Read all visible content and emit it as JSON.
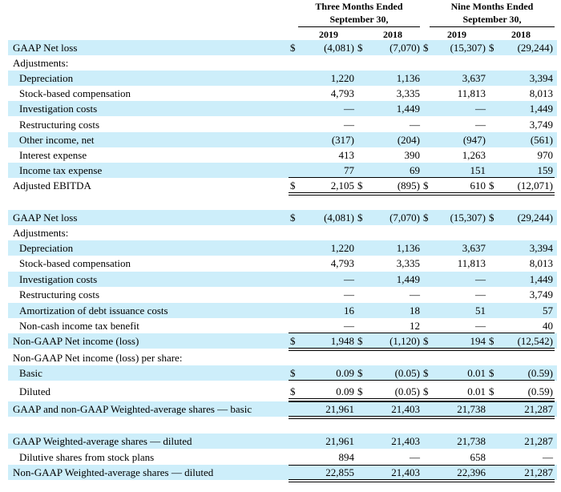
{
  "header": {
    "three_months": [
      "Three Months Ended",
      "September 30,"
    ],
    "nine_months": [
      "Nine Months Ended",
      "September 30,"
    ],
    "years": [
      "2019",
      "2018",
      "2019",
      "2018"
    ]
  },
  "rows": [
    {
      "label": "GAAP Net loss",
      "values": [
        "(4,081)",
        "(7,070)",
        "(15,307)",
        "(29,244)"
      ],
      "dollar": true
    },
    {
      "label": "Adjustments:",
      "values": [
        "",
        "",
        "",
        ""
      ]
    },
    {
      "label": "Depreciation",
      "indent": true,
      "values": [
        "1,220",
        "1,136",
        "3,637",
        "3,394"
      ]
    },
    {
      "label": "Stock-based compensation",
      "indent": true,
      "values": [
        "4,793",
        "3,335",
        "11,813",
        "8,013"
      ]
    },
    {
      "label": "Investigation costs",
      "indent": true,
      "values": [
        "—",
        "1,449",
        "—",
        "1,449"
      ]
    },
    {
      "label": "Restructuring costs",
      "indent": true,
      "values": [
        "—",
        "—",
        "—",
        "3,749"
      ]
    },
    {
      "label": "Other income, net",
      "indent": true,
      "values": [
        "(317)",
        "(204)",
        "(947)",
        "(561)"
      ]
    },
    {
      "label": "Interest expense",
      "indent": true,
      "values": [
        "413",
        "390",
        "1,263",
        "970"
      ]
    },
    {
      "label": "Income tax expense",
      "indent": true,
      "values": [
        "77",
        "69",
        "151",
        "159"
      ]
    },
    {
      "label": "Adjusted EBITDA",
      "values": [
        "2,105",
        "(895)",
        "610",
        "(12,071)"
      ],
      "dollar": true
    },
    {
      "label": "GAAP Net loss",
      "values": [
        "(4,081)",
        "(7,070)",
        "(15,307)",
        "(29,244)"
      ],
      "dollar": true
    },
    {
      "label": "Adjustments:",
      "values": [
        "",
        "",
        "",
        ""
      ]
    },
    {
      "label": "Depreciation",
      "indent": true,
      "values": [
        "1,220",
        "1,136",
        "3,637",
        "3,394"
      ]
    },
    {
      "label": "Stock-based compensation",
      "indent": true,
      "values": [
        "4,793",
        "3,335",
        "11,813",
        "8,013"
      ]
    },
    {
      "label": "Investigation costs",
      "indent": true,
      "values": [
        "—",
        "1,449",
        "—",
        "1,449"
      ]
    },
    {
      "label": "Restructuring costs",
      "indent": true,
      "values": [
        "—",
        "—",
        "—",
        "3,749"
      ]
    },
    {
      "label": "Amortization of debt issuance costs",
      "indent": true,
      "values": [
        "16",
        "18",
        "51",
        "57"
      ]
    },
    {
      "label": "Non-cash income tax benefit",
      "indent": true,
      "values": [
        "—",
        "12",
        "—",
        "40"
      ]
    },
    {
      "label": "Non-GAAP Net income (loss)",
      "values": [
        "1,948",
        "(1,120)",
        "194",
        "(12,542)"
      ],
      "dollar": true
    },
    {
      "label": "Non-GAAP Net income (loss) per share:",
      "values": [
        "",
        "",
        "",
        ""
      ]
    },
    {
      "label": "Basic",
      "indent": true,
      "values": [
        "0.09",
        "(0.05)",
        "0.01",
        "(0.59)"
      ],
      "dollar": true
    },
    {
      "label": "Diluted",
      "indent": true,
      "values": [
        "0.09",
        "(0.05)",
        "0.01",
        "(0.59)"
      ],
      "dollar": true
    },
    {
      "label": "GAAP and non-GAAP Weighted-average shares — basic",
      "values": [
        "21,961",
        "21,403",
        "21,738",
        "21,287"
      ]
    },
    {
      "label": "GAAP Weighted-average shares — diluted",
      "values": [
        "21,961",
        "21,403",
        "21,738",
        "21,287"
      ]
    },
    {
      "label": "Dilutive shares from stock plans",
      "indent": true,
      "values": [
        "894",
        "—",
        "658",
        "—"
      ]
    },
    {
      "label": "Non-GAAP Weighted-average shares — diluted",
      "values": [
        "22,855",
        "21,403",
        "22,396",
        "21,287"
      ]
    }
  ],
  "currency_symbol": "$"
}
